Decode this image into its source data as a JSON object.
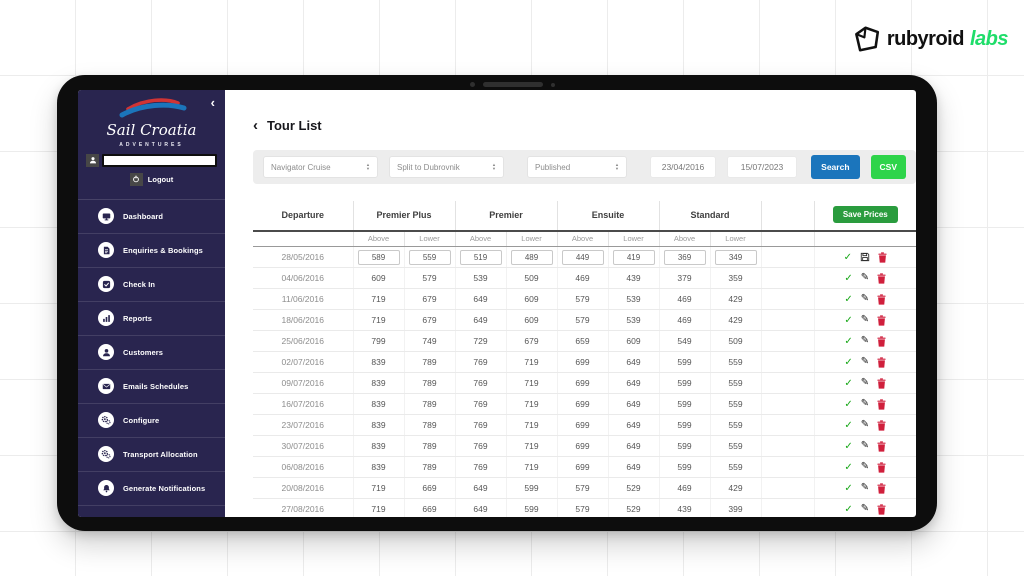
{
  "branding": {
    "logo_primary": "rubyroid",
    "logo_accent": "labs"
  },
  "colors": {
    "sidebar_navy": "#29254f",
    "search_blue": "#1b75bc",
    "csv_green": "#2ed44a",
    "save_green": "#2a9c3e",
    "check_green": "#18a818",
    "trash_red": "#d01f3c",
    "logo_accent_green": "#1fdd6a"
  },
  "sidebar": {
    "collapse_icon": "‹",
    "brand_name": "Sail Croatia",
    "brand_tagline": "ADVENTURES",
    "username_value": "",
    "logout_label": "Logout",
    "items": [
      {
        "label": "Dashboard",
        "icon": "dashboard-icon"
      },
      {
        "label": "Enquiries & Bookings",
        "icon": "bookings-icon"
      },
      {
        "label": "Check In",
        "icon": "check-in-icon"
      },
      {
        "label": "Reports",
        "icon": "reports-icon"
      },
      {
        "label": "Customers",
        "icon": "customers-icon"
      },
      {
        "label": "Emails Schedules",
        "icon": "emails-icon"
      },
      {
        "label": "Configure",
        "icon": "configure-icon"
      },
      {
        "label": "Transport Allocation",
        "icon": "transport-icon"
      },
      {
        "label": "Generate Notifications",
        "icon": "notifications-icon"
      }
    ]
  },
  "page": {
    "back_icon": "‹",
    "title": "Tour List"
  },
  "filters": {
    "cruise_selected": "Navigator Cruise",
    "route_selected": "Split to Dubrovnik",
    "status_selected": "Published",
    "date_from": "23/04/2016",
    "date_to": "15/07/2023",
    "search_label": "Search",
    "csv_label": "CSV"
  },
  "table": {
    "save_prices_label": "Save Prices",
    "departure_header": "Departure",
    "groups": [
      "Premier Plus",
      "Premier",
      "Ensuite",
      "Standard"
    ],
    "subcolumns": [
      "Above",
      "Lower"
    ],
    "rows": [
      {
        "departure": "28/05/2016",
        "values": [
          589,
          559,
          519,
          489,
          449,
          419,
          369,
          349
        ],
        "editing": true
      },
      {
        "departure": "04/06/2016",
        "values": [
          609,
          579,
          539,
          509,
          469,
          439,
          379,
          359
        ]
      },
      {
        "departure": "11/06/2016",
        "values": [
          719,
          679,
          649,
          609,
          579,
          539,
          469,
          429
        ]
      },
      {
        "departure": "18/06/2016",
        "values": [
          719,
          679,
          649,
          609,
          579,
          539,
          469,
          429
        ]
      },
      {
        "departure": "25/06/2016",
        "values": [
          799,
          749,
          729,
          679,
          659,
          609,
          549,
          509
        ]
      },
      {
        "departure": "02/07/2016",
        "values": [
          839,
          789,
          769,
          719,
          699,
          649,
          599,
          559
        ]
      },
      {
        "departure": "09/07/2016",
        "values": [
          839,
          789,
          769,
          719,
          699,
          649,
          599,
          559
        ]
      },
      {
        "departure": "16/07/2016",
        "values": [
          839,
          789,
          769,
          719,
          699,
          649,
          599,
          559
        ]
      },
      {
        "departure": "23/07/2016",
        "values": [
          839,
          789,
          769,
          719,
          699,
          649,
          599,
          559
        ]
      },
      {
        "departure": "30/07/2016",
        "values": [
          839,
          789,
          769,
          719,
          699,
          649,
          599,
          559
        ]
      },
      {
        "departure": "06/08/2016",
        "values": [
          839,
          789,
          769,
          719,
          699,
          649,
          599,
          559
        ]
      },
      {
        "departure": "20/08/2016",
        "values": [
          719,
          669,
          649,
          599,
          579,
          529,
          469,
          429
        ]
      },
      {
        "departure": "27/08/2016",
        "values": [
          719,
          669,
          649,
          599,
          579,
          529,
          439,
          399
        ]
      }
    ]
  }
}
